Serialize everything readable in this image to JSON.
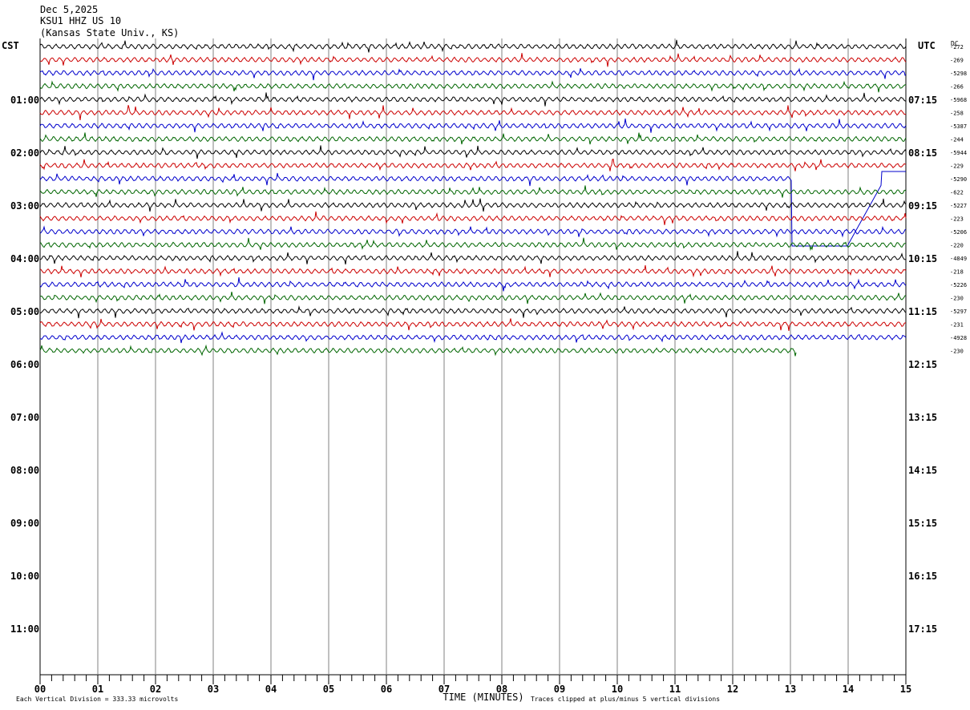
{
  "header": {
    "date": "Dec 5,2025",
    "station": "KSU1 HHZ US 10",
    "location": "(Kansas State Univ., KS)"
  },
  "left_tz": "CST",
  "right_tz": "UTC",
  "dc_label": "DC",
  "footer": {
    "scale_note": "Each Vertical Division =  333.33 microvolts",
    "clip_note": "Traces clipped at plus/minus 5 vertical divisions"
  },
  "colors": {
    "trace_cycle": [
      "#000000",
      "#cc0000",
      "#0000cc",
      "#006600"
    ],
    "grid": "#808080"
  },
  "chart_data": {
    "type": "line",
    "title": "",
    "xlabel": "TIME (MINUTES)",
    "xlim": [
      0,
      15
    ],
    "x_ticks": [
      "00",
      "01",
      "02",
      "03",
      "04",
      "05",
      "06",
      "07",
      "08",
      "09",
      "10",
      "11",
      "12",
      "13",
      "14",
      "15"
    ],
    "hour_labels_left": [
      "01:00",
      "02:00",
      "03:00",
      "04:00",
      "05:00",
      "06:00",
      "07:00",
      "08:00",
      "09:00",
      "10:00",
      "11:00"
    ],
    "hour_labels_right": [
      "07:15",
      "08:15",
      "09:15",
      "10:15",
      "11:15",
      "12:15",
      "13:15",
      "14:15",
      "15:15",
      "16:15",
      "17:15"
    ],
    "trace_minutes": 15,
    "traces": [
      {
        "dc": "-272",
        "end_minute": 15
      },
      {
        "dc": "-269",
        "end_minute": 15
      },
      {
        "dc": "-5298",
        "end_minute": 15
      },
      {
        "dc": "-266",
        "end_minute": 15
      },
      {
        "dc": "-5968",
        "end_minute": 15
      },
      {
        "dc": "-258",
        "end_minute": 15
      },
      {
        "dc": "-5387",
        "end_minute": 15
      },
      {
        "dc": "-244",
        "end_minute": 15
      },
      {
        "dc": "-5944",
        "end_minute": 15
      },
      {
        "dc": "-229",
        "end_minute": 15
      },
      {
        "dc": "-5290",
        "end_minute": 15,
        "event": "step"
      },
      {
        "dc": "-622",
        "end_minute": 15
      },
      {
        "dc": "-5227",
        "end_minute": 15
      },
      {
        "dc": "-223",
        "end_minute": 15
      },
      {
        "dc": "-5206",
        "end_minute": 15
      },
      {
        "dc": "-220",
        "end_minute": 15
      },
      {
        "dc": "-4849",
        "end_minute": 15
      },
      {
        "dc": "-218",
        "end_minute": 15
      },
      {
        "dc": "-5226",
        "end_minute": 15
      },
      {
        "dc": "-230",
        "end_minute": 15
      },
      {
        "dc": "-5297",
        "end_minute": 15
      },
      {
        "dc": "-231",
        "end_minute": 15
      },
      {
        "dc": "-4928",
        "end_minute": 15
      },
      {
        "dc": "-230",
        "end_minute": 13.1
      }
    ],
    "grid": true
  }
}
